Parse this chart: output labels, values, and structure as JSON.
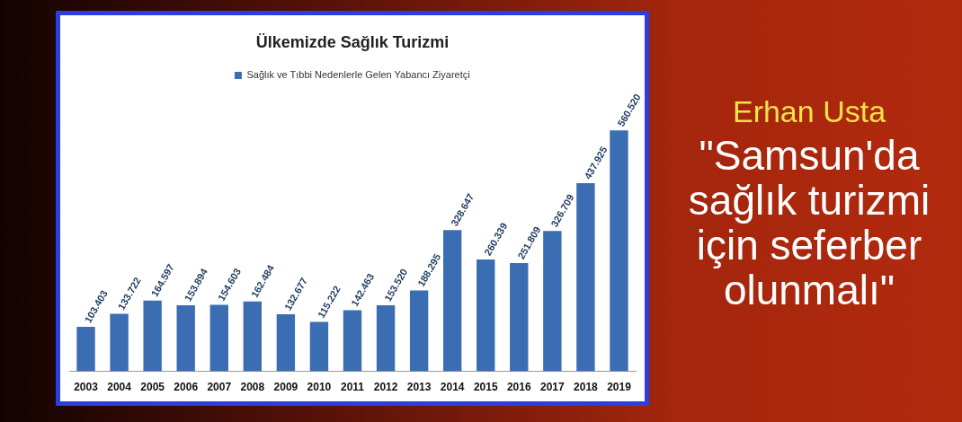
{
  "chart_data": {
    "type": "bar",
    "title": "Ülkemizde Sağlık Turizmi",
    "categories": [
      "2003",
      "2004",
      "2005",
      "2006",
      "2007",
      "2008",
      "2009",
      "2010",
      "2011",
      "2012",
      "2013",
      "2014",
      "2015",
      "2016",
      "2017",
      "2018",
      "2019"
    ],
    "series": [
      {
        "name": "Sağlık ve Tıbbi Nedenlerle Gelen Yabancı Ziyaretçi",
        "color": "#3b6db3",
        "values": [
          103403,
          133722,
          164597,
          153894,
          154603,
          162484,
          132677,
          115222,
          142463,
          153520,
          188295,
          328647,
          260339,
          251809,
          326709,
          437925,
          560520
        ],
        "value_labels": [
          "103.403",
          "133.722",
          "164.597",
          "153.894",
          "154.603",
          "162.484",
          "132.677",
          "115.222",
          "142.463",
          "153.520",
          "188.295",
          "328.647",
          "260.339",
          "251.809",
          "326.709",
          "437.925",
          "560.520"
        ]
      }
    ],
    "legend": "top",
    "annotations": [
      "Erhan Usta",
      "\"Samsun'da sağlık turizmi için seferber olunmalı\""
    ]
  }
}
